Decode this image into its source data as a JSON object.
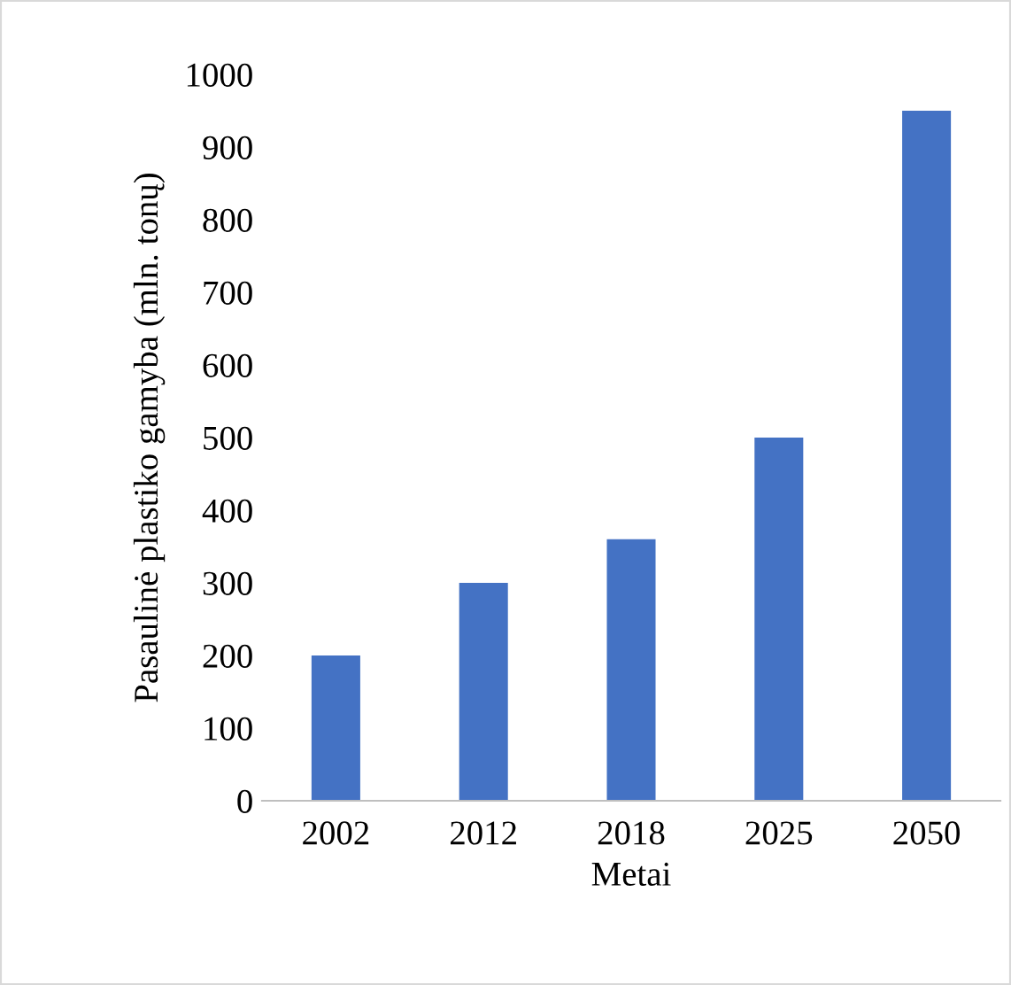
{
  "chart_data": {
    "type": "bar",
    "xlabel": "Metai",
    "ylabel": "Pasaulinė plastiko gamyba (mln. tonų)",
    "categories": [
      "2002",
      "2012",
      "2018",
      "2025",
      "2050"
    ],
    "values": [
      200,
      300,
      360,
      500,
      950
    ],
    "color": "#4472c4",
    "ylim": [
      0,
      1000
    ],
    "yticks": [
      0,
      100,
      200,
      300,
      400,
      500,
      600,
      700,
      800,
      900,
      1000
    ],
    "grid": false,
    "legend": false
  }
}
